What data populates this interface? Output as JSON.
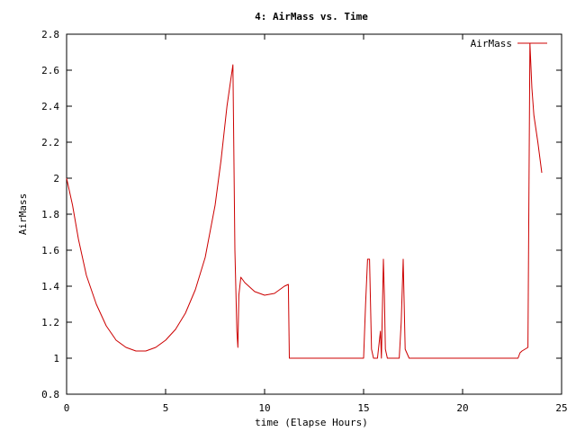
{
  "chart_data": {
    "type": "line",
    "title": "4: AirMass vs. Time",
    "xlabel": "time (Elapse Hours)",
    "ylabel": "AirMass",
    "xlim": [
      0,
      25
    ],
    "ylim": [
      0.8,
      2.8
    ],
    "xticks": [
      0,
      5,
      10,
      15,
      20,
      25
    ],
    "xtick_labels": [
      "0",
      "5",
      "10",
      "15",
      "20",
      "25"
    ],
    "yticks": [
      0.8,
      1.0,
      1.2,
      1.4,
      1.6,
      1.8,
      2.0,
      2.2,
      2.4,
      2.6,
      2.8
    ],
    "ytick_labels": [
      "0.8",
      "1",
      "1.2",
      "1.4",
      "1.6",
      "1.8",
      "2",
      "2.2",
      "2.4",
      "2.6",
      "2.8"
    ],
    "grid": false,
    "legend_position": "top-right",
    "series": [
      {
        "name": "AirMass",
        "color": "#cc0000",
        "x": [
          0,
          0.3,
          0.6,
          1.0,
          1.5,
          2.0,
          2.5,
          3.0,
          3.5,
          4.0,
          4.5,
          5.0,
          5.5,
          6.0,
          6.5,
          7.0,
          7.5,
          7.8,
          8.1,
          8.4,
          8.5,
          8.6,
          8.65,
          8.7,
          8.8,
          9.0,
          9.5,
          10.0,
          10.5,
          11.0,
          11.2,
          11.25,
          11.5,
          12.0,
          13.0,
          14.0,
          15.0,
          15.1,
          15.2,
          15.3,
          15.4,
          15.5,
          15.7,
          15.85,
          15.9,
          16.0,
          16.05,
          16.1,
          16.2,
          16.3,
          16.5,
          16.8,
          16.9,
          17.0,
          17.1,
          17.3,
          18.0,
          19.0,
          20.0,
          21.0,
          22.0,
          22.8,
          22.9,
          23.0,
          23.3,
          23.4,
          23.5,
          23.6,
          23.8,
          24.0
        ],
        "y": [
          2.0,
          1.85,
          1.66,
          1.46,
          1.3,
          1.18,
          1.1,
          1.06,
          1.04,
          1.04,
          1.06,
          1.1,
          1.16,
          1.25,
          1.38,
          1.56,
          1.85,
          2.1,
          2.4,
          2.63,
          1.6,
          1.15,
          1.06,
          1.35,
          1.45,
          1.42,
          1.37,
          1.35,
          1.36,
          1.4,
          1.41,
          1.0,
          1.0,
          1.0,
          1.0,
          1.0,
          1.0,
          1.3,
          1.55,
          1.55,
          1.05,
          1.0,
          1.0,
          1.15,
          1.0,
          1.55,
          1.35,
          1.05,
          1.0,
          1.0,
          1.0,
          1.0,
          1.2,
          1.55,
          1.05,
          1.0,
          1.0,
          1.0,
          1.0,
          1.0,
          1.0,
          1.0,
          1.03,
          1.04,
          1.06,
          2.75,
          2.5,
          2.35,
          2.2,
          2.03
        ]
      }
    ]
  }
}
